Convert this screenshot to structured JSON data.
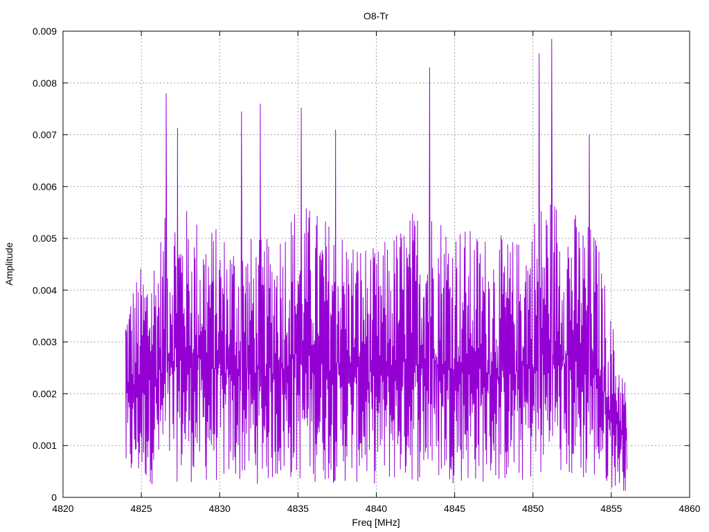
{
  "chart_data": {
    "type": "line",
    "title": "O8-Tr",
    "xlabel": "Freq [MHz]",
    "ylabel": "Amplitude",
    "xlim": [
      4820,
      4860
    ],
    "ylim": [
      0,
      0.009
    ],
    "x_ticks": [
      "4820",
      "4825",
      "4830",
      "4835",
      "4840",
      "4845",
      "4850",
      "4855",
      "4860"
    ],
    "y_ticks": [
      "0",
      "0.001",
      "0.002",
      "0.003",
      "0.004",
      "0.005",
      "0.006",
      "0.007",
      "0.008",
      "0.009"
    ],
    "grid": true,
    "legend": "none",
    "series": [
      {
        "color": "#9400d3",
        "x_range": [
          4824.0,
          4856.0
        ],
        "sample_count": 1200,
        "peaks": [
          {
            "x": 4826.6,
            "y": 0.0078
          },
          {
            "x": 4827.3,
            "y": 0.00713
          },
          {
            "x": 4831.4,
            "y": 0.00745
          },
          {
            "x": 4832.6,
            "y": 0.0076
          },
          {
            "x": 4835.2,
            "y": 0.00752
          },
          {
            "x": 4837.4,
            "y": 0.0071
          },
          {
            "x": 4843.4,
            "y": 0.0083
          },
          {
            "x": 4850.4,
            "y": 0.00857
          },
          {
            "x": 4851.2,
            "y": 0.00885
          },
          {
            "x": 4853.6,
            "y": 0.007
          }
        ],
        "envelope": [
          {
            "x": 4824.0,
            "y": 0.004
          },
          {
            "x": 4826.0,
            "y": 0.005
          },
          {
            "x": 4827.0,
            "y": 0.0058
          },
          {
            "x": 4830.0,
            "y": 0.0052
          },
          {
            "x": 4833.0,
            "y": 0.005
          },
          {
            "x": 4835.0,
            "y": 0.0058
          },
          {
            "x": 4838.0,
            "y": 0.0052
          },
          {
            "x": 4840.0,
            "y": 0.0048
          },
          {
            "x": 4843.0,
            "y": 0.0058
          },
          {
            "x": 4846.0,
            "y": 0.0052
          },
          {
            "x": 4849.0,
            "y": 0.005
          },
          {
            "x": 4851.0,
            "y": 0.006
          },
          {
            "x": 4854.0,
            "y": 0.0052
          },
          {
            "x": 4855.0,
            "y": 0.0035
          },
          {
            "x": 4856.0,
            "y": 0.0022
          }
        ]
      }
    ]
  }
}
